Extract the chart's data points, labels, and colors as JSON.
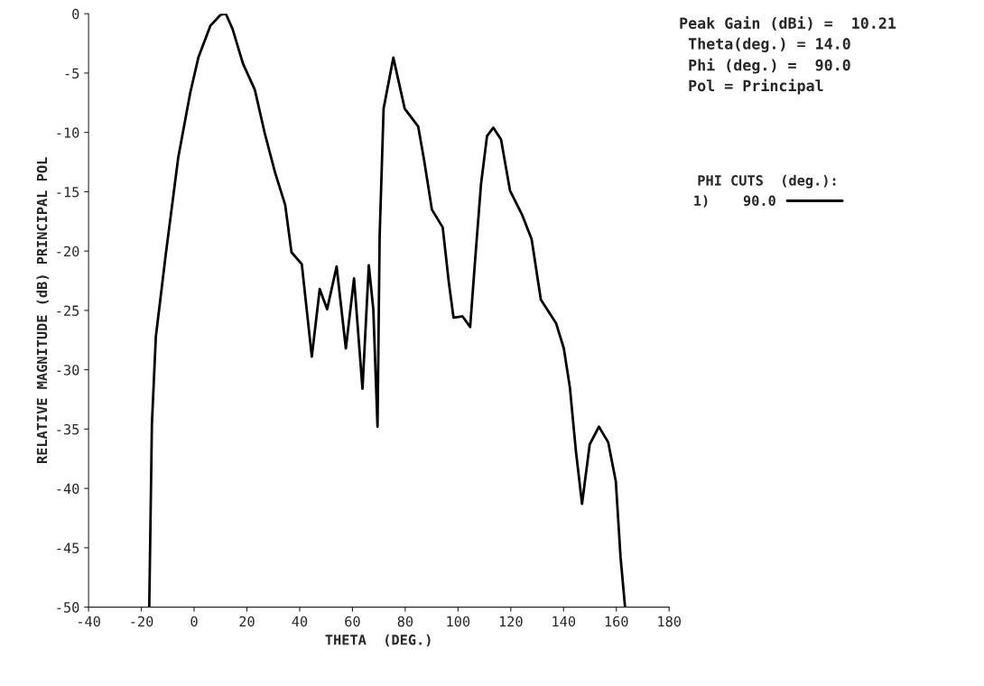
{
  "chart_data": {
    "type": "line",
    "xlabel": "THETA  (DEG.)",
    "ylabel": "RELATIVE MAGNITUDE (dB) PRINCIPAL POL",
    "annotations": [
      "Peak Gain (dBi) =  10.21",
      " Theta(deg.) = 14.0",
      " Phi (deg.) =  90.0",
      " Pol = Principal"
    ],
    "legend_title": "PHI CUTS  (deg.):",
    "series": [
      {
        "name": "1)    90.0",
        "color": "#000000",
        "x": [
          -17,
          -16,
          -14.5,
          -10.7,
          -6,
          -1.5,
          1.6,
          6.2,
          10,
          12,
          14.6,
          18.5,
          23,
          26.8,
          30.7,
          34.5,
          36.9,
          40.8,
          44.6,
          47.6,
          50.4,
          54,
          57.5,
          60.6,
          63.8,
          66.2,
          67.9,
          69.5,
          70.3,
          71.8,
          75.5,
          79.8,
          84.9,
          87.2,
          90.1,
          94.2,
          96.5,
          98.3,
          101.7,
          104.6,
          106.4,
          108.7,
          111,
          113.4,
          116.3,
          119.7,
          124.4,
          127.9,
          131.4,
          137.2,
          140.1,
          142.4,
          144.7,
          147,
          149.9,
          153.4,
          156.9,
          159.8,
          161.6,
          163.3
        ],
        "values": [
          -50,
          -34.6,
          -27.2,
          -20.2,
          -12.1,
          -6.7,
          -3.7,
          -1.0,
          -0.1,
          0,
          -1.3,
          -4.2,
          -6.4,
          -10.1,
          -13.4,
          -16.1,
          -20.1,
          -21.1,
          -28.9,
          -23.2,
          -24.9,
          -21.3,
          -28.2,
          -22.3,
          -31.6,
          -21.2,
          -24.9,
          -34.8,
          -18.8,
          -8.0,
          -3.7,
          -8.0,
          -9.5,
          -12.4,
          -16.5,
          -18.0,
          -22.6,
          -25.6,
          -25.5,
          -26.4,
          -21.0,
          -14.4,
          -10.3,
          -9.6,
          -10.6,
          -14.9,
          -17.0,
          -19.0,
          -24.1,
          -26.1,
          -28.2,
          -31.5,
          -36.9,
          -41.3,
          -36.3,
          -34.8,
          -36.1,
          -39.4,
          -45.8,
          -50
        ]
      }
    ],
    "xlim": [
      -40,
      180
    ],
    "xticks": [
      -40,
      -20,
      0,
      20,
      40,
      60,
      80,
      100,
      120,
      140,
      160,
      180
    ],
    "ylim": [
      -50,
      0
    ],
    "yticks": [
      -50,
      -45,
      -40,
      -35,
      -30,
      -25,
      -20,
      -15,
      -10,
      -5,
      0
    ],
    "legend": "right",
    "grid": false,
    "line_style": "solid",
    "marker": "none"
  }
}
